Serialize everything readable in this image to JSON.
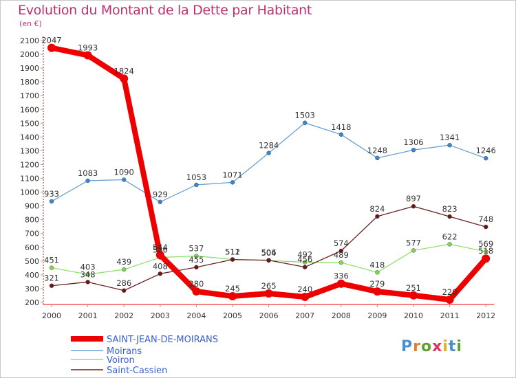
{
  "page": {
    "title": "Evolution du Montant de la Dette par Habitant",
    "unit": "(en €)",
    "logo_text": "Proxiti"
  },
  "chart_data": {
    "type": "line",
    "title": "Evolution du Montant de la Dette par Habitant",
    "subtitle": "(en €)",
    "x": [
      "2000",
      "2001",
      "2002",
      "2003",
      "2004",
      "2005",
      "2006",
      "2007",
      "2008",
      "2009",
      "2010",
      "2011",
      "2012"
    ],
    "yticks": [
      200,
      300,
      400,
      500,
      600,
      700,
      800,
      900,
      1000,
      1100,
      1200,
      1300,
      1400,
      1500,
      1600,
      1700,
      1800,
      1900,
      2000,
      2100
    ],
    "ylim": [
      200,
      2100
    ],
    "grid": false,
    "legend_position": "bottom-left",
    "series": [
      {
        "name": "SAINT-JEAN-DE-MOIRANS",
        "color": "#ee0000",
        "values": [
          2047,
          1993,
          1824,
          544,
          280,
          245,
          265,
          240,
          336,
          279,
          251,
          220,
          518
        ]
      },
      {
        "name": "Moirans",
        "color": "#6ca0d0",
        "values": [
          933,
          1083,
          1090,
          929,
          1053,
          1071,
          1284,
          1503,
          1418,
          1248,
          1306,
          1341,
          1246
        ]
      },
      {
        "name": "Voiron",
        "color": "#90e070",
        "values": [
          451,
          403,
          439,
          526,
          537,
          512,
          504,
          492,
          489,
          418,
          577,
          622,
          569
        ]
      },
      {
        "name": "Saint-Cassien",
        "color": "#6b2020",
        "values": [
          321,
          348,
          286,
          408,
          455,
          511,
          506,
          456,
          574,
          824,
          897,
          823,
          748
        ]
      }
    ],
    "marker_colors": {
      "SAINT-JEAN-DE-MOIRANS": "#ee0000",
      "Moirans": "#3a86d0",
      "Voiron": "#80d850",
      "Saint-Cassien": "#6b1818"
    },
    "axis_color": "#ee0000",
    "label_color": "#333333"
  }
}
